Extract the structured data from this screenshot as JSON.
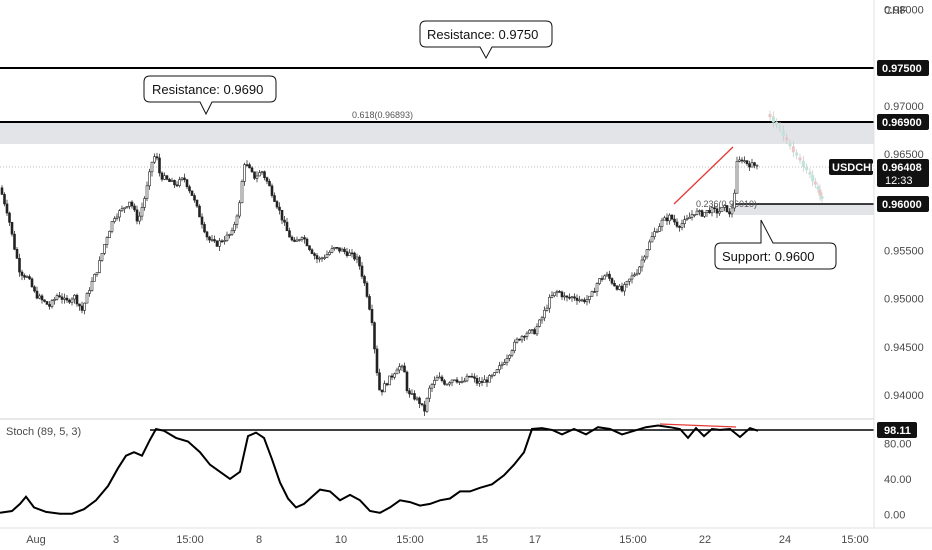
{
  "chart_data": [
    {
      "type": "candlestick",
      "symbol": "USDCHF",
      "currency": "CHF",
      "last_price": "0.96408",
      "countdown": "12:33",
      "ylim": [
        0.9375,
        0.981
      ],
      "y_ticks": [
        "0.98000",
        "0.97000",
        "0.96500",
        "0.95500",
        "0.95000",
        "0.94500",
        "0.94000"
      ],
      "x_ticks": [
        "Aug",
        "3",
        "15:00",
        "8",
        "10",
        "15:00",
        "15",
        "17",
        "15:00",
        "22",
        "24",
        "15:00"
      ],
      "close_path": [
        [
          0,
          0.9615
        ],
        [
          8,
          0.9588
        ],
        [
          14,
          0.9555
        ],
        [
          20,
          0.9528
        ],
        [
          28,
          0.9521
        ],
        [
          35,
          0.9505
        ],
        [
          42,
          0.9498
        ],
        [
          50,
          0.9492
        ],
        [
          58,
          0.9505
        ],
        [
          66,
          0.9496
        ],
        [
          74,
          0.9503
        ],
        [
          82,
          0.9488
        ],
        [
          90,
          0.9512
        ],
        [
          98,
          0.9532
        ],
        [
          106,
          0.9562
        ],
        [
          114,
          0.9585
        ],
        [
          122,
          0.9592
        ],
        [
          130,
          0.9602
        ],
        [
          138,
          0.958
        ],
        [
          146,
          0.961
        ],
        [
          152,
          0.9642
        ],
        [
          156,
          0.965
        ],
        [
          160,
          0.9628
        ],
        [
          168,
          0.9622
        ],
        [
          176,
          0.9618
        ],
        [
          184,
          0.9625
        ],
        [
          192,
          0.9608
        ],
        [
          200,
          0.9585
        ],
        [
          208,
          0.9562
        ],
        [
          216,
          0.9556
        ],
        [
          224,
          0.9562
        ],
        [
          232,
          0.9568
        ],
        [
          240,
          0.96
        ],
        [
          244,
          0.9642
        ],
        [
          248,
          0.9636
        ],
        [
          254,
          0.9626
        ],
        [
          262,
          0.9632
        ],
        [
          270,
          0.9615
        ],
        [
          278,
          0.9595
        ],
        [
          286,
          0.9572
        ],
        [
          294,
          0.9556
        ],
        [
          302,
          0.9566
        ],
        [
          310,
          0.9552
        ],
        [
          318,
          0.954
        ],
        [
          326,
          0.9545
        ],
        [
          334,
          0.9552
        ],
        [
          342,
          0.955
        ],
        [
          350,
          0.9546
        ],
        [
          358,
          0.954
        ],
        [
          366,
          0.951
        ],
        [
          372,
          0.9478
        ],
        [
          376,
          0.9432
        ],
        [
          380,
          0.9402
        ],
        [
          386,
          0.9412
        ],
        [
          392,
          0.942
        ],
        [
          398,
          0.943
        ],
        [
          404,
          0.9426
        ],
        [
          408,
          0.94
        ],
        [
          414,
          0.9398
        ],
        [
          420,
          0.9392
        ],
        [
          424,
          0.9382
        ],
        [
          430,
          0.9408
        ],
        [
          438,
          0.9418
        ],
        [
          446,
          0.9412
        ],
        [
          454,
          0.9418
        ],
        [
          462,
          0.9412
        ],
        [
          470,
          0.942
        ],
        [
          478,
          0.9412
        ],
        [
          486,
          0.9415
        ],
        [
          494,
          0.942
        ],
        [
          502,
          0.9432
        ],
        [
          510,
          0.9445
        ],
        [
          518,
          0.9458
        ],
        [
          526,
          0.9465
        ],
        [
          534,
          0.9465
        ],
        [
          542,
          0.948
        ],
        [
          550,
          0.95
        ],
        [
          558,
          0.9508
        ],
        [
          566,
          0.95
        ],
        [
          574,
          0.9502
        ],
        [
          582,
          0.9498
        ],
        [
          590,
          0.95
        ],
        [
          598,
          0.9518
        ],
        [
          606,
          0.9525
        ],
        [
          614,
          0.9515
        ],
        [
          622,
          0.9508
        ],
        [
          630,
          0.952
        ],
        [
          638,
          0.953
        ],
        [
          646,
          0.955
        ],
        [
          654,
          0.9568
        ],
        [
          662,
          0.958
        ],
        [
          670,
          0.9585
        ],
        [
          678,
          0.9576
        ],
        [
          686,
          0.958
        ],
        [
          694,
          0.959
        ],
        [
          702,
          0.9588
        ],
        [
          710,
          0.9592
        ],
        [
          718,
          0.959
        ],
        [
          726,
          0.9595
        ],
        [
          730,
          0.9585
        ],
        [
          734,
          0.9605
        ],
        [
          737,
          0.964
        ],
        [
          742,
          0.9645
        ],
        [
          748,
          0.964
        ],
        [
          754,
          0.9638
        ],
        [
          758,
          0.9642
        ]
      ],
      "levels": [
        {
          "price": 0.975,
          "label": "0.97500",
          "kind": "resistance"
        },
        {
          "price": 0.969,
          "label": "0.96900",
          "kind": "resistance"
        },
        {
          "price": 0.96,
          "label": "0.96000",
          "kind": "support"
        }
      ],
      "annotations": [
        {
          "text": "Resistance: 0.9750"
        },
        {
          "text": "Resistance: 0.9690"
        },
        {
          "text": "Support: 0.9600"
        },
        {
          "text": "0.618(0.96893)"
        },
        {
          "text": "0.236(0.96010)"
        }
      ],
      "projection": [
        [
          770,
          0.969
        ],
        [
          780,
          0.9678
        ],
        [
          790,
          0.966
        ],
        [
          800,
          0.9645
        ],
        [
          810,
          0.963
        ],
        [
          818,
          0.9615
        ],
        [
          824,
          0.96
        ]
      ]
    },
    {
      "type": "line",
      "indicator": "Stoch (89, 5, 3)",
      "last_value": "98.11",
      "ylim": [
        -5,
        105
      ],
      "y_ticks": [
        "80.00",
        "40.00",
        "0.00"
      ],
      "x": [
        0,
        12,
        20,
        26,
        34,
        46,
        60,
        72,
        84,
        96,
        108,
        118,
        126,
        134,
        142,
        150,
        156,
        164,
        176,
        188,
        200,
        210,
        220,
        230,
        240,
        248,
        256,
        264,
        272,
        280,
        288,
        296,
        304,
        312,
        320,
        330,
        340,
        350,
        360,
        370,
        380,
        390,
        400,
        410,
        420,
        430,
        440,
        450,
        460,
        470,
        480,
        492,
        504,
        514,
        524,
        532,
        542,
        552,
        562,
        574,
        586,
        598,
        610,
        622,
        634,
        646,
        658,
        670,
        680,
        688,
        696,
        704,
        712,
        720,
        730,
        740,
        750,
        758
      ],
      "values": [
        2,
        4,
        12,
        20,
        8,
        3,
        1,
        1,
        6,
        16,
        32,
        52,
        66,
        70,
        66,
        84,
        96,
        94,
        86,
        82,
        70,
        56,
        48,
        40,
        48,
        88,
        92,
        86,
        62,
        36,
        18,
        8,
        12,
        20,
        28,
        26,
        16,
        22,
        16,
        4,
        2,
        8,
        16,
        14,
        10,
        12,
        16,
        18,
        26,
        26,
        30,
        34,
        44,
        56,
        70,
        96,
        97,
        95,
        90,
        96,
        90,
        98,
        96,
        90,
        94,
        98,
        100,
        98,
        96,
        86,
        97,
        88,
        96,
        95,
        96,
        87,
        97,
        94
      ]
    }
  ]
}
